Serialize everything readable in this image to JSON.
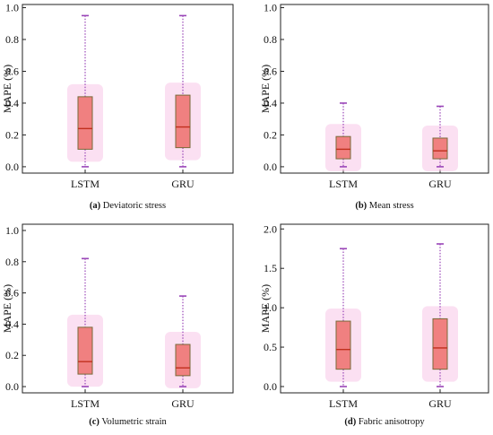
{
  "colors": {
    "box_fill": "#f08080",
    "box_edge": "#7a6a3a",
    "median": "#c0301e",
    "whisker": "#9a46b8",
    "halo": "#f7c6e8",
    "frame": "#222222"
  },
  "chart_data": [
    {
      "type": "box",
      "panel_tag": "(a)",
      "caption": "Deviatoric stress",
      "ylabel": "MAPE (%)",
      "ylim": [
        -0.04,
        1.02
      ],
      "yticks": [
        "0.0",
        "0.2",
        "0.4",
        "0.6",
        "0.8",
        "1.0"
      ],
      "categories": [
        "LSTM",
        "GRU"
      ],
      "boxes": [
        {
          "min": 0.0,
          "q1": 0.11,
          "median": 0.24,
          "q3": 0.44,
          "max": 0.95
        },
        {
          "min": 0.0,
          "q1": 0.12,
          "median": 0.25,
          "q3": 0.45,
          "max": 0.95
        }
      ],
      "grid": false
    },
    {
      "type": "box",
      "panel_tag": "(b)",
      "caption": "Mean stress",
      "ylabel": "MAPE (%)",
      "ylim": [
        -0.04,
        1.02
      ],
      "yticks": [
        "0.0",
        "0.2",
        "0.4",
        "0.6",
        "0.8",
        "1.0"
      ],
      "categories": [
        "LSTM",
        "GRU"
      ],
      "boxes": [
        {
          "min": 0.0,
          "q1": 0.05,
          "median": 0.11,
          "q3": 0.19,
          "max": 0.4
        },
        {
          "min": 0.0,
          "q1": 0.05,
          "median": 0.1,
          "q3": 0.18,
          "max": 0.38
        }
      ],
      "grid": false
    },
    {
      "type": "box",
      "panel_tag": "(c)",
      "caption": "Volumetric strain",
      "ylabel": "MAPE (%)",
      "ylim": [
        -0.04,
        1.04
      ],
      "yticks": [
        "0.0",
        "0.2",
        "0.4",
        "0.6",
        "0.8",
        "1.0"
      ],
      "categories": [
        "LSTM",
        "GRU"
      ],
      "boxes": [
        {
          "min": 0.0,
          "q1": 0.08,
          "median": 0.16,
          "q3": 0.38,
          "max": 0.82
        },
        {
          "min": 0.0,
          "q1": 0.07,
          "median": 0.12,
          "q3": 0.27,
          "max": 0.58
        }
      ],
      "grid": false
    },
    {
      "type": "box",
      "panel_tag": "(d)",
      "caption": "Fabric anisotropy",
      "ylabel": "MAPE (%)",
      "ylim": [
        -0.08,
        2.06
      ],
      "yticks": [
        "0.0",
        "0.5",
        "1.0",
        "1.5",
        "2.0"
      ],
      "categories": [
        "LSTM",
        "GRU"
      ],
      "boxes": [
        {
          "min": 0.0,
          "q1": 0.22,
          "median": 0.47,
          "q3": 0.83,
          "max": 1.75
        },
        {
          "min": 0.0,
          "q1": 0.22,
          "median": 0.49,
          "q3": 0.86,
          "max": 1.81
        }
      ],
      "grid": false
    }
  ]
}
